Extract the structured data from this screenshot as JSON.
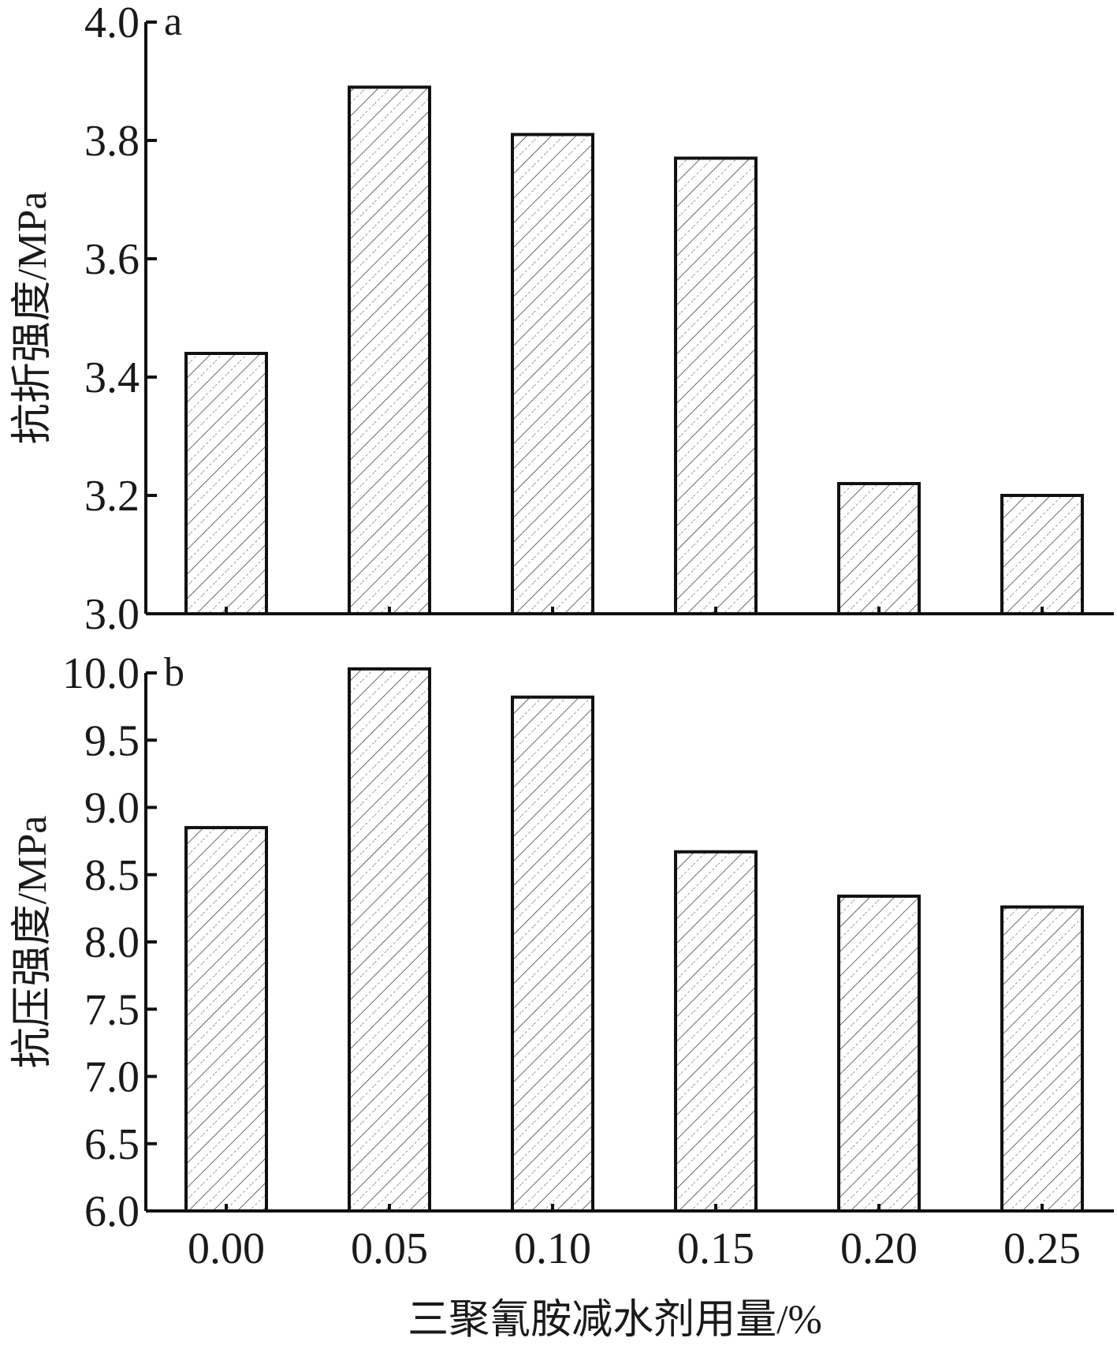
{
  "chart_data": [
    {
      "type": "bar",
      "panel_label": "a",
      "categories": [
        "0.00",
        "0.05",
        "0.10",
        "0.15",
        "0.20",
        "0.25"
      ],
      "values": [
        3.44,
        3.89,
        3.81,
        3.77,
        3.22,
        3.2
      ],
      "ylabel": "抗折强度/MPa",
      "ylim": [
        3.0,
        4.0
      ],
      "yticks": [
        "3.0",
        "3.2",
        "3.4",
        "3.6",
        "3.8",
        "4.0"
      ],
      "grid": false,
      "bar_fill": "hatched"
    },
    {
      "type": "bar",
      "panel_label": "b",
      "categories": [
        "0.00",
        "0.05",
        "0.10",
        "0.15",
        "0.20",
        "0.25"
      ],
      "values": [
        8.85,
        10.03,
        9.82,
        8.67,
        8.34,
        8.26
      ],
      "ylabel": "抗压强度/MPa",
      "ylim": [
        6.0,
        10.0
      ],
      "yticks": [
        "6.0",
        "6.5",
        "7.0",
        "7.5",
        "8.0",
        "8.5",
        "9.0",
        "9.5",
        "10.0"
      ],
      "grid": false,
      "bar_fill": "hatched"
    }
  ],
  "xlabel": "三聚氰胺减水剂用量/%",
  "xtick_labels": [
    "0.00",
    "0.05",
    "0.10",
    "0.15",
    "0.20",
    "0.25"
  ],
  "colors": {
    "axis": "#111111",
    "bar_outline": "#111111",
    "hatch": "#444444",
    "background": "#ffffff"
  }
}
